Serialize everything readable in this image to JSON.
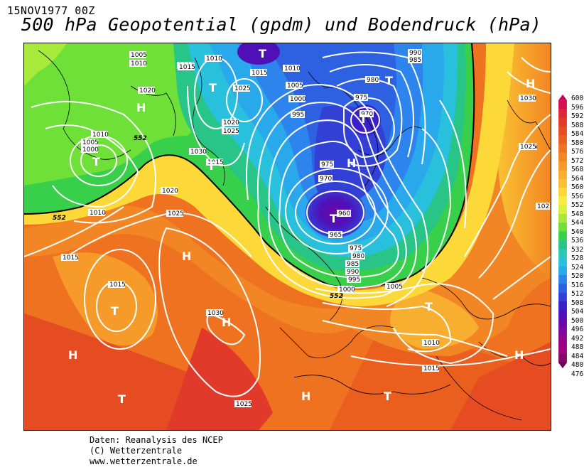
{
  "header": {
    "date": "15NOV1977 00Z",
    "title": "500 hPa Geopotential (gpdm) und Bodendruck (hPa)"
  },
  "colorbar": {
    "labels": [
      "600",
      "596",
      "592",
      "588",
      "584",
      "580",
      "576",
      "572",
      "568",
      "564",
      "560",
      "556",
      "552",
      "548",
      "544",
      "540",
      "536",
      "532",
      "528",
      "524",
      "520",
      "516",
      "512",
      "508",
      "504",
      "500",
      "496",
      "492",
      "488",
      "484",
      "480",
      "476"
    ],
    "colors": [
      "#c8005a",
      "#d2124f",
      "#dc2838",
      "#e23a2a",
      "#e64c22",
      "#ea5e1e",
      "#ee7220",
      "#f28624",
      "#f69a2a",
      "#f8ae2e",
      "#fac232",
      "#fcd838",
      "#f8ec40",
      "#dcf040",
      "#a8ea3a",
      "#6ee038",
      "#38d04a",
      "#28c488",
      "#28c8b4",
      "#28c0dc",
      "#2aa8ec",
      "#2c84ec",
      "#2e60e2",
      "#3240d6",
      "#3a20c8",
      "#5010b8",
      "#6a06a8",
      "#820498",
      "#96028a",
      "#a0017e",
      "#880468",
      "#6a0258"
    ]
  },
  "map": {
    "pressure_labels": [
      "1005",
      "1010",
      "1015",
      "1020",
      "1005",
      "1000",
      "1010",
      "1010",
      "1015",
      "1025",
      "1020",
      "1025",
      "1030",
      "1015",
      "1015",
      "1010",
      "1005",
      "1000",
      "995",
      "990",
      "985",
      "980",
      "975",
      "970",
      "975",
      "970",
      "960",
      "965",
      "975",
      "980",
      "985",
      "990",
      "995",
      "1000",
      "1005",
      "1010",
      "1015",
      "1020",
      "1025",
      "1030",
      "1015",
      "1030",
      "1025",
      "1010",
      "1015",
      "1025",
      "1030",
      "1025",
      "102"
    ],
    "centers": [
      {
        "type": "T"
      },
      {
        "type": "T"
      },
      {
        "type": "T"
      },
      {
        "type": "H"
      },
      {
        "type": "T"
      },
      {
        "type": "T"
      },
      {
        "type": "T"
      },
      {
        "type": "H"
      },
      {
        "type": "T"
      },
      {
        "type": "H"
      },
      {
        "type": "H"
      },
      {
        "type": "T"
      },
      {
        "type": "H"
      },
      {
        "type": "H"
      },
      {
        "type": "T"
      },
      {
        "type": "H"
      },
      {
        "type": "T"
      },
      {
        "type": "T"
      },
      {
        "type": "H"
      },
      {
        "type": "H"
      }
    ],
    "geopotential_labels": [
      "552",
      "552",
      "552"
    ]
  },
  "credits": {
    "line1": "Daten: Reanalysis des NCEP",
    "line2": "(C) Wetterzentrale",
    "line3": "www.wetterzentrale.de"
  }
}
